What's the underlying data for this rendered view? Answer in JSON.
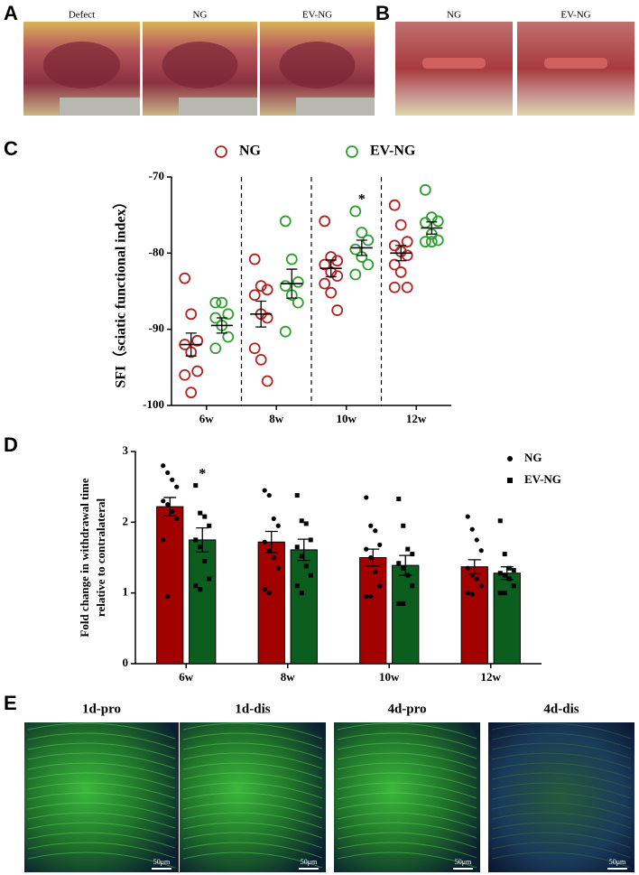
{
  "figure": {
    "panel_labels": [
      "A",
      "B",
      "C",
      "D",
      "E"
    ],
    "panel_a_labels": [
      "Defect",
      "NG",
      "EV-NG"
    ],
    "panel_b_labels": [
      "NG",
      "EV-NG"
    ],
    "panel_e_labels": [
      "1d-pro",
      "1d-dis",
      "4d-pro",
      "4d-dis"
    ],
    "scale_bar": "50μm"
  },
  "chart_data": [
    {
      "type": "scatter",
      "ylabel": "SFI（sciatic functional index）",
      "categories": [
        "6w",
        "8w",
        "10w",
        "12w"
      ],
      "ylim": [
        -100,
        -70
      ],
      "yticks": [
        -100,
        -90,
        -80,
        -70
      ],
      "separators": true,
      "legend": "top",
      "annotations": [
        {
          "text": "*",
          "category": "10w",
          "series": "EV-NG"
        }
      ],
      "series": [
        {
          "name": "NG",
          "color": "#b22222",
          "values": [
            [
              -83.3,
              -88,
              -91.5,
              -92,
              -93,
              -95.5,
              -96,
              -98.3
            ],
            [
              -80.8,
              -84.3,
              -84.8,
              -85.5,
              -88,
              -88.5,
              -92.5,
              -94,
              -96.8
            ],
            [
              -75.8,
              -80.5,
              -81,
              -81.5,
              -82.5,
              -83,
              -84,
              -85.2,
              -87.5
            ],
            [
              -73.7,
              -76.3,
              -78.5,
              -79,
              -79.8,
              -80.3,
              -81.5,
              -82.5,
              -84.5,
              -84.5
            ]
          ],
          "means": [
            -92,
            -88,
            -82,
            -80
          ],
          "errors": [
            1.5,
            1.7,
            1.1,
            1.0
          ]
        },
        {
          "name": "EV-NG",
          "color": "#2e9e2e",
          "values": [
            [
              -86.5,
              -86.5,
              -88,
              -88.5,
              -89.5,
              -91,
              -92.5
            ],
            [
              -75.8,
              -80.8,
              -83.8,
              -84.3,
              -85.5,
              -86.5,
              -90.3
            ],
            [
              -74.5,
              -77.3,
              -78.3,
              -79.5,
              -80.5,
              -81.5,
              -82.8
            ],
            [
              -71.7,
              -75.3,
              -75.8,
              -76,
              -77.5,
              -78.3,
              -78.5,
              -78.5
            ]
          ],
          "means": [
            -89.5,
            -84,
            -79.3,
            -76.7
          ],
          "errors": [
            1.0,
            1.9,
            1.0,
            0.8
          ]
        }
      ]
    },
    {
      "type": "bar",
      "ylabel": [
        "Fold change in withdrawal time",
        "relative to contralateral"
      ],
      "categories": [
        "6w",
        "8w",
        "10w",
        "12w"
      ],
      "ylim": [
        0,
        3
      ],
      "yticks": [
        0,
        1,
        2,
        3
      ],
      "legend": "top-right",
      "annotations": [
        {
          "text": "*",
          "category": "6w",
          "series": "EV-NG"
        }
      ],
      "series": [
        {
          "name": "NG",
          "color": "#a30000",
          "marker": "circle",
          "values": [
            2.22,
            1.72,
            1.5,
            1.37
          ],
          "errors": [
            0.13,
            0.15,
            0.12,
            0.1
          ],
          "points": [
            [
              2.8,
              2.7,
              2.6,
              2.5,
              2.3,
              2.25,
              2.15,
              2.05,
              1.75,
              0.95
            ],
            [
              2.45,
              2.38,
              2.05,
              1.95,
              1.72,
              1.6,
              1.5,
              1.35,
              1.05,
              1.0
            ],
            [
              2.35,
              1.95,
              1.88,
              1.68,
              1.62,
              1.5,
              1.3,
              1.1,
              0.95,
              0.95
            ],
            [
              2.08,
              1.9,
              1.75,
              1.6,
              1.35,
              1.25,
              1.2,
              1.1,
              1.0,
              0.98
            ]
          ]
        },
        {
          "name": "EV-NG",
          "color": "#0b5e1e",
          "marker": "square",
          "values": [
            1.75,
            1.61,
            1.39,
            1.28
          ],
          "errors": [
            0.17,
            0.15,
            0.14,
            0.09
          ],
          "points": [
            [
              2.52,
              2.13,
              2.08,
              1.95,
              1.75,
              1.65,
              1.45,
              1.2,
              1.1,
              1.05
            ],
            [
              2.38,
              2.02,
              1.98,
              1.75,
              1.65,
              1.52,
              1.38,
              1.25,
              1.1,
              1.0
            ],
            [
              2.33,
              1.95,
              1.62,
              1.55,
              1.42,
              1.35,
              1.25,
              1.1,
              0.85,
              0.85
            ],
            [
              2.02,
              1.55,
              1.35,
              1.32,
              1.28,
              1.25,
              1.2,
              1.1,
              1.0,
              1.0
            ]
          ]
        }
      ]
    }
  ]
}
